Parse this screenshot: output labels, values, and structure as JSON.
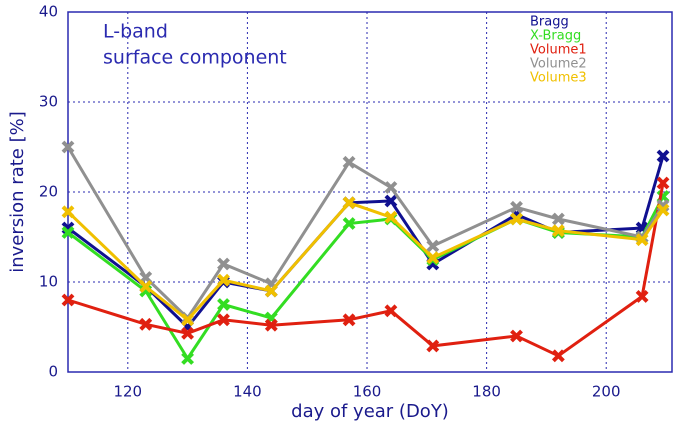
{
  "chart_data": {
    "type": "line",
    "annotation": [
      "L-band",
      "surface component"
    ],
    "xlabel": "day of year (DoY)",
    "ylabel": "inversion rate [%]",
    "x": [
      110,
      123,
      130,
      136,
      144,
      157,
      164,
      171,
      185,
      192,
      206,
      209.5
    ],
    "series": [
      {
        "name": "Bragg",
        "color": "#101090",
        "values": [
          16,
          9.5,
          5,
          10,
          9,
          18.8,
          19,
          12,
          17.5,
          15.5,
          16,
          24
        ]
      },
      {
        "name": "X-Bragg",
        "color": "#33dd22",
        "values": [
          15.5,
          9,
          1.5,
          7.5,
          6,
          16.5,
          17,
          12.5,
          17,
          15.5,
          15,
          19.5
        ]
      },
      {
        "name": "Volume1",
        "color": "#e02010",
        "values": [
          8,
          5.3,
          4.3,
          5.8,
          5.2,
          5.8,
          6.8,
          2.9,
          4,
          1.8,
          8.4,
          21
        ]
      },
      {
        "name": "Volume2",
        "color": "#909090",
        "values": [
          25,
          10.5,
          6,
          12,
          9.8,
          23.3,
          20.5,
          14,
          18.3,
          17,
          15,
          18.5
        ]
      },
      {
        "name": "Volume3",
        "color": "#f0c000",
        "values": [
          17.8,
          9.5,
          5.8,
          10.2,
          9,
          18.8,
          17.2,
          12.7,
          17,
          15.7,
          14.7,
          18
        ]
      }
    ],
    "xlim": [
      110,
      211
    ],
    "xticks": [
      120,
      140,
      160,
      180,
      200
    ],
    "ylim": [
      0,
      40
    ],
    "yticks": [
      0,
      10,
      20,
      30,
      40
    ],
    "grid": true,
    "legend": "top-right"
  }
}
